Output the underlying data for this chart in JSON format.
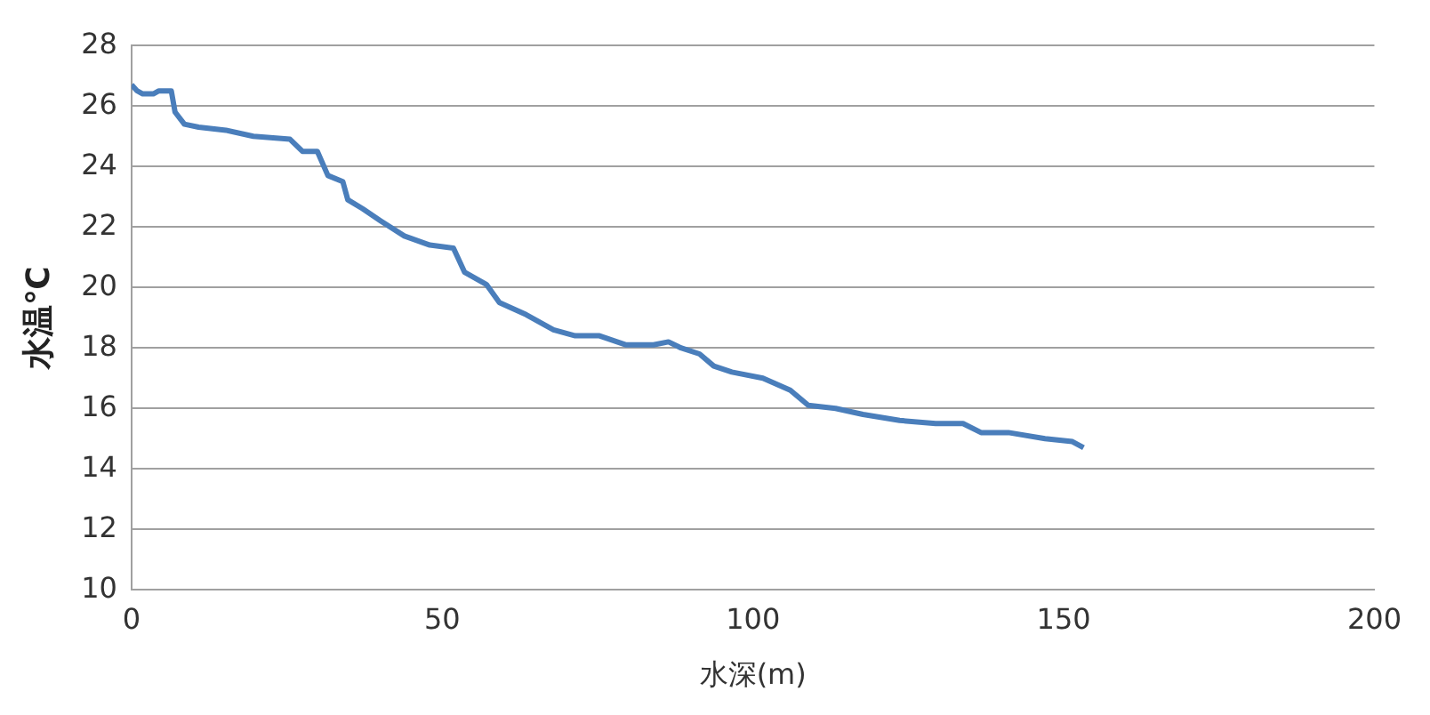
{
  "chart_data": {
    "type": "line",
    "xlabel": "水深(m)",
    "ylabel": "水温℃",
    "xlim": [
      0,
      200
    ],
    "xticks": [
      0,
      50,
      100,
      150,
      200
    ],
    "ylim": [
      10,
      28
    ],
    "yticks": [
      10,
      12,
      14,
      16,
      18,
      20,
      22,
      24,
      26,
      28
    ],
    "grid": "y",
    "legend": false,
    "marker": "none",
    "line_style": "solid",
    "series": [
      {
        "color": "#4a7ebb",
        "x": [
          0,
          0.9,
          1.8,
          3.5,
          4.4,
          6.4,
          7.0,
          8.5,
          10.8,
          15.2,
          19.6,
          25.5,
          27.5,
          29.9,
          31.6,
          34.0,
          34.8,
          37.2,
          40.1,
          43.9,
          48.0,
          51.8,
          53.6,
          57.1,
          59.2,
          63.5,
          67.9,
          71.4,
          75.3,
          79.6,
          84.0,
          86.4,
          88.4,
          91.4,
          93.7,
          96.6,
          101.6,
          106.0,
          108.9,
          113.3,
          117.7,
          123.6,
          129.4,
          133.8,
          136.7,
          141.1,
          147.0,
          151.4,
          153.2
        ],
        "values": [
          26.7,
          26.5,
          26.4,
          26.4,
          26.5,
          26.5,
          25.8,
          25.4,
          25.3,
          25.2,
          25.0,
          24.9,
          24.5,
          24.5,
          23.7,
          23.5,
          22.9,
          22.6,
          22.2,
          21.7,
          21.4,
          21.3,
          20.5,
          20.1,
          19.5,
          19.1,
          18.6,
          18.4,
          18.4,
          18.1,
          18.1,
          18.2,
          18.0,
          17.8,
          17.4,
          17.2,
          17.0,
          16.6,
          16.1,
          16.0,
          15.8,
          15.6,
          15.5,
          15.5,
          15.2,
          15.2,
          15.0,
          14.9,
          14.7
        ]
      }
    ]
  }
}
